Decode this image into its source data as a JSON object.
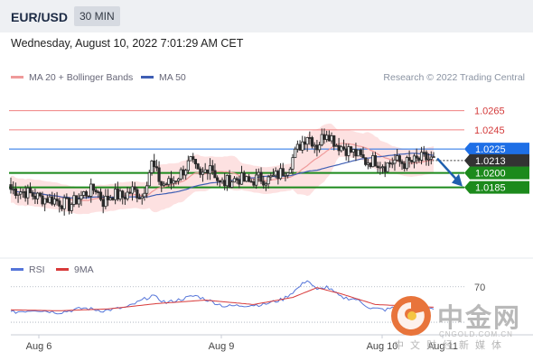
{
  "header": {
    "pair": "EUR/USD",
    "timeframe": "30 MIN",
    "datetime": "Wednesday, August 10, 2022 7:01:29 AM CET"
  },
  "legend": {
    "ma20_label": "MA 20 + Bollinger Bands",
    "ma50_label": "MA 50",
    "research": "Research © 2022 Trading Central",
    "rsi_label": "RSI",
    "ma9_label": "9MA"
  },
  "colors": {
    "resistance": "#f08080",
    "support": "#1c8a1c",
    "ma50": "#3f5fb4",
    "ma20": "#ef9a9a",
    "band_fill": "#fde1e1",
    "candle": "#2a2a2a",
    "rsi": "#5575d9",
    "rsi_ma": "#d83a3a",
    "arrow": "#1f5fae",
    "price_label": "#333333",
    "pivot_label": "#1e6fe6"
  },
  "watermark": {
    "cn": "中金网",
    "en": "CNGOLD.COM.CN",
    "sub": "中文财经新媒体"
  },
  "chart_data": {
    "type": "candlestick",
    "y_range": [
      1.0115,
      1.029
    ],
    "levels": [
      {
        "value": 1.0265,
        "label": "1.0265",
        "kind": "resistance"
      },
      {
        "value": 1.0245,
        "label": "1.0245",
        "kind": "resistance"
      },
      {
        "value": 1.0225,
        "label": "1.0225",
        "kind": "pivot"
      },
      {
        "value": 1.0213,
        "label": "1.0213",
        "kind": "last"
      },
      {
        "value": 1.02,
        "label": "1.0200",
        "kind": "support"
      },
      {
        "value": 1.0185,
        "label": "1.0185",
        "kind": "support"
      }
    ],
    "x_labels": [
      "Aug 6",
      "Aug 9",
      "Aug 10",
      "Aug 11"
    ],
    "rsi_level": {
      "value": 70,
      "label": "70"
    },
    "close_waypoints": [
      [
        0,
        1.0183
      ],
      [
        6,
        1.018
      ],
      [
        12,
        1.0174
      ],
      [
        18,
        1.0172
      ],
      [
        24,
        1.0166
      ],
      [
        30,
        1.0178
      ],
      [
        35,
        1.0184
      ],
      [
        38,
        1.017
      ],
      [
        42,
        1.0178
      ],
      [
        46,
        1.0175
      ],
      [
        50,
        1.0182
      ],
      [
        54,
        1.0176
      ],
      [
        58,
        1.021
      ],
      [
        62,
        1.0188
      ],
      [
        66,
        1.019
      ],
      [
        70,
        1.02
      ],
      [
        74,
        1.0212
      ],
      [
        78,
        1.0195
      ],
      [
        82,
        1.021
      ],
      [
        86,
        1.0188
      ],
      [
        90,
        1.0192
      ],
      [
        94,
        1.0194
      ],
      [
        98,
        1.019
      ],
      [
        102,
        1.0195
      ],
      [
        106,
        1.0193
      ],
      [
        110,
        1.0198
      ],
      [
        114,
        1.0206
      ],
      [
        118,
        1.0225
      ],
      [
        122,
        1.024
      ],
      [
        126,
        1.0228
      ],
      [
        130,
        1.0244
      ],
      [
        134,
        1.023
      ],
      [
        138,
        1.0225
      ],
      [
        142,
        1.022
      ],
      [
        146,
        1.0212
      ],
      [
        150,
        1.0213
      ],
      [
        154,
        1.0208
      ],
      [
        158,
        1.0213
      ],
      [
        162,
        1.021
      ],
      [
        166,
        1.0212
      ],
      [
        170,
        1.0216
      ],
      [
        174,
        1.0213
      ]
    ],
    "rsi_waypoints": [
      [
        0,
        41
      ],
      [
        10,
        44
      ],
      [
        20,
        41
      ],
      [
        30,
        46
      ],
      [
        38,
        43
      ],
      [
        48,
        47
      ],
      [
        58,
        60
      ],
      [
        64,
        52
      ],
      [
        70,
        56
      ],
      [
        76,
        60
      ],
      [
        82,
        54
      ],
      [
        88,
        48
      ],
      [
        96,
        49
      ],
      [
        104,
        50
      ],
      [
        112,
        56
      ],
      [
        118,
        68
      ],
      [
        122,
        78
      ],
      [
        126,
        66
      ],
      [
        130,
        70
      ],
      [
        136,
        58
      ],
      [
        142,
        56
      ],
      [
        148,
        46
      ],
      [
        154,
        44
      ],
      [
        160,
        48
      ],
      [
        168,
        47
      ],
      [
        174,
        46
      ]
    ],
    "rsi_ma_waypoints": [
      [
        0,
        44
      ],
      [
        20,
        43
      ],
      [
        40,
        45
      ],
      [
        60,
        51
      ],
      [
        80,
        55
      ],
      [
        100,
        50
      ],
      [
        116,
        58
      ],
      [
        126,
        69
      ],
      [
        136,
        62
      ],
      [
        150,
        50
      ],
      [
        174,
        47
      ]
    ]
  }
}
